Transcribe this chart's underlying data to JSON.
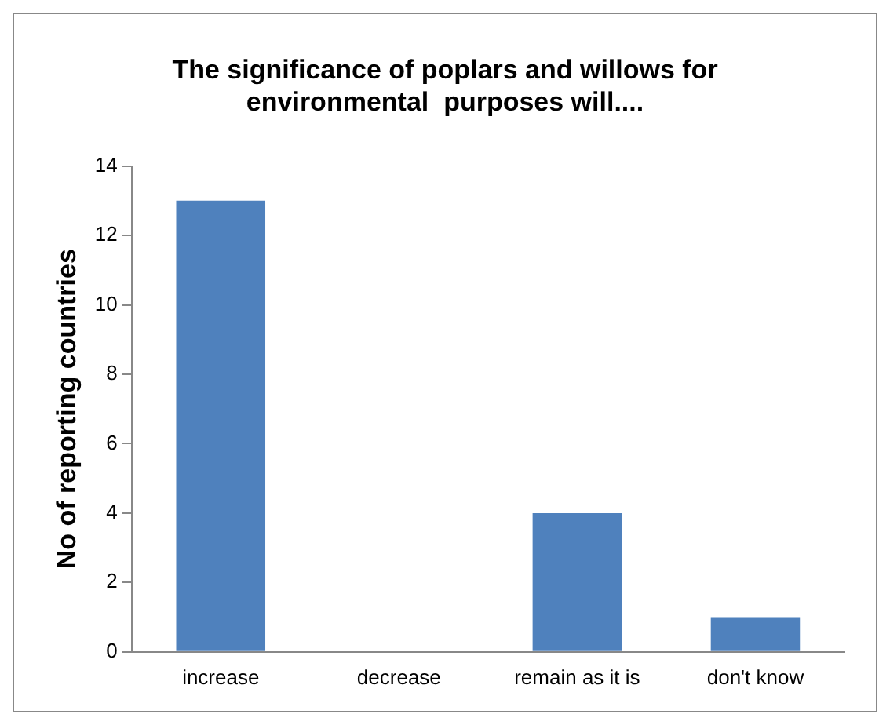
{
  "chart_data": {
    "type": "bar",
    "title": "The significance of poplars and willows for\nenvironmental  purposes will....",
    "ylabel": "No of reporting countries",
    "categories": [
      "increase",
      "decrease",
      "remain as it is",
      "don't know"
    ],
    "values": [
      13,
      0,
      4,
      1
    ],
    "color": "#4f81bd",
    "ylim": [
      0,
      14
    ],
    "yticks": [
      0,
      2,
      4,
      6,
      8,
      10,
      12,
      14
    ],
    "grid": false,
    "legend": false
  }
}
